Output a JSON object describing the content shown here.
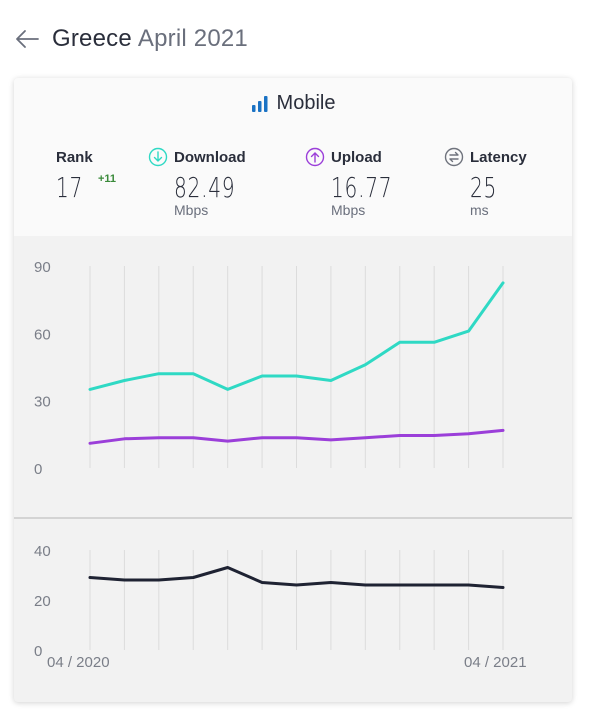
{
  "header": {
    "back_icon": "arrow-left-icon",
    "country": "Greece",
    "period": "April 2021"
  },
  "card": {
    "connection": {
      "icon": "signal-bars-icon",
      "label": "Mobile"
    },
    "metrics": {
      "rank": {
        "label": "Rank",
        "value": "17",
        "change": "+11"
      },
      "download": {
        "label": "Download",
        "value": "82.49",
        "unit": "Mbps",
        "icon": "arrow-down-circle-icon",
        "color": "#2fd9c4"
      },
      "upload": {
        "label": "Upload",
        "value": "16.77",
        "unit": "Mbps",
        "icon": "arrow-up-circle-icon",
        "color": "#9b3fd9"
      },
      "latency": {
        "label": "Latency",
        "value": "25",
        "unit": "ms",
        "icon": "latency-circle-icon",
        "color": "#6f737d"
      }
    }
  },
  "chart_data": [
    {
      "type": "line",
      "x": [
        "04 / 2020",
        "05 / 2020",
        "06 / 2020",
        "07 / 2020",
        "08 / 2020",
        "09 / 2020",
        "10 / 2020",
        "11 / 2020",
        "12 / 2020",
        "01 / 2021",
        "02 / 2021",
        "03 / 2021",
        "04 / 2021"
      ],
      "x_tick_labels": [
        "04 / 2020",
        "04 / 2021"
      ],
      "yticks": [
        0,
        30,
        60,
        90
      ],
      "ylim": [
        0,
        90
      ],
      "grid": "vertical",
      "series": [
        {
          "name": "Download",
          "color": "#2fd9c4",
          "values": [
            35,
            39,
            42,
            42,
            35,
            41,
            41,
            39,
            46,
            56,
            56,
            61,
            82.49
          ]
        },
        {
          "name": "Upload",
          "color": "#9b3fd9",
          "values": [
            11,
            13,
            13.5,
            13.5,
            12,
            13.5,
            13.5,
            12.5,
            13.5,
            14.5,
            14.5,
            15.3,
            16.77
          ]
        }
      ]
    },
    {
      "type": "line",
      "x": [
        "04 / 2020",
        "05 / 2020",
        "06 / 2020",
        "07 / 2020",
        "08 / 2020",
        "09 / 2020",
        "10 / 2020",
        "11 / 2020",
        "12 / 2020",
        "01 / 2021",
        "02 / 2021",
        "03 / 2021",
        "04 / 2021"
      ],
      "x_tick_labels": [
        "04 / 2020",
        "04 / 2021"
      ],
      "yticks": [
        0,
        20,
        40
      ],
      "ylim": [
        0,
        40
      ],
      "grid": "vertical",
      "series": [
        {
          "name": "Latency",
          "color": "#1f2333",
          "values": [
            29,
            28,
            28,
            29,
            33,
            27,
            26,
            27,
            26,
            26,
            26,
            26,
            25
          ]
        }
      ]
    }
  ]
}
